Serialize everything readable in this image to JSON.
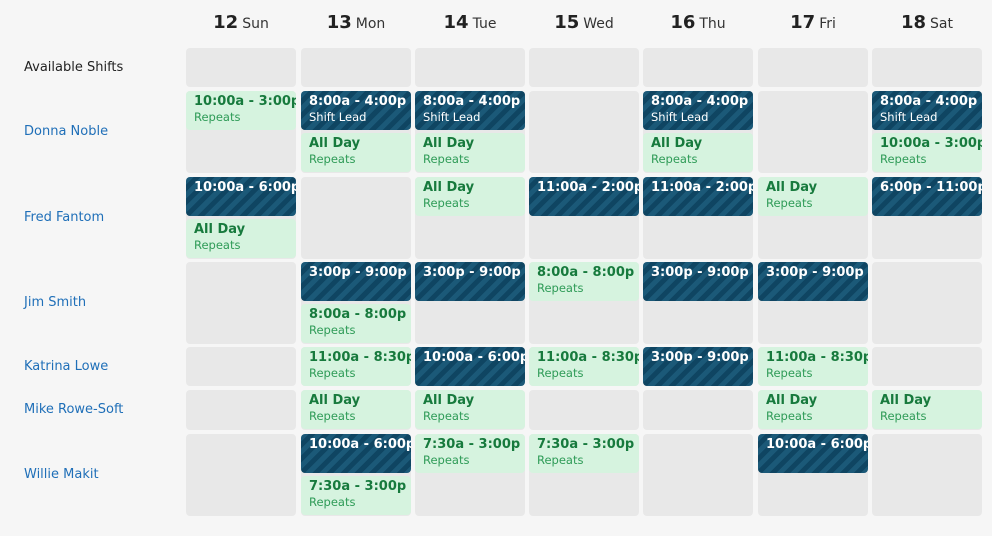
{
  "days": [
    {
      "num": "12",
      "name": "Sun"
    },
    {
      "num": "13",
      "name": "Mon"
    },
    {
      "num": "14",
      "name": "Tue"
    },
    {
      "num": "15",
      "name": "Wed"
    },
    {
      "num": "16",
      "name": "Thu"
    },
    {
      "num": "17",
      "name": "Fri"
    },
    {
      "num": "18",
      "name": "Sat"
    }
  ],
  "rows": [
    {
      "label": "Available Shifts",
      "kind": "available"
    },
    {
      "label": "Donna Noble",
      "kind": "person"
    },
    {
      "label": "Fred Fantom",
      "kind": "person"
    },
    {
      "label": "Jim Smith",
      "kind": "person"
    },
    {
      "label": "Katrina Lowe",
      "kind": "person"
    },
    {
      "label": "Mike Rowe-Soft",
      "kind": "person"
    },
    {
      "label": "Willie Makit",
      "kind": "person"
    }
  ],
  "shifts": [
    {
      "row": 1,
      "day": 0,
      "slot": 0,
      "style": "repeating",
      "time": "10:00a - 3:00p",
      "sub": "Repeats"
    },
    {
      "row": 1,
      "day": 1,
      "slot": 0,
      "style": "lead",
      "time": "8:00a - 4:00p",
      "sub": "Shift Lead"
    },
    {
      "row": 1,
      "day": 1,
      "slot": 1,
      "style": "repeating",
      "time": "All Day",
      "sub": "Repeats"
    },
    {
      "row": 1,
      "day": 2,
      "slot": 0,
      "style": "lead",
      "time": "8:00a - 4:00p",
      "sub": "Shift Lead"
    },
    {
      "row": 1,
      "day": 2,
      "slot": 1,
      "style": "repeating",
      "time": "All Day",
      "sub": "Repeats"
    },
    {
      "row": 1,
      "day": 4,
      "slot": 0,
      "style": "lead",
      "time": "8:00a - 4:00p",
      "sub": "Shift Lead"
    },
    {
      "row": 1,
      "day": 4,
      "slot": 1,
      "style": "repeating",
      "time": "All Day",
      "sub": "Repeats"
    },
    {
      "row": 1,
      "day": 6,
      "slot": 0,
      "style": "lead",
      "time": "8:00a - 4:00p",
      "sub": "Shift Lead"
    },
    {
      "row": 1,
      "day": 6,
      "slot": 1,
      "style": "repeating",
      "time": "10:00a - 3:00p",
      "sub": "Repeats"
    },
    {
      "row": 2,
      "day": 0,
      "slot": 0,
      "style": "lead",
      "time": "10:00a - 6:00p",
      "sub": ""
    },
    {
      "row": 2,
      "day": 0,
      "slot": 1,
      "style": "repeating",
      "time": "All Day",
      "sub": "Repeats"
    },
    {
      "row": 2,
      "day": 2,
      "slot": 0,
      "style": "repeating",
      "time": "All Day",
      "sub": "Repeats"
    },
    {
      "row": 2,
      "day": 3,
      "slot": 0,
      "style": "lead",
      "time": "11:00a - 2:00p",
      "sub": ""
    },
    {
      "row": 2,
      "day": 4,
      "slot": 0,
      "style": "lead",
      "time": "11:00a - 2:00p",
      "sub": ""
    },
    {
      "row": 2,
      "day": 5,
      "slot": 0,
      "style": "repeating",
      "time": "All Day",
      "sub": "Repeats"
    },
    {
      "row": 2,
      "day": 6,
      "slot": 0,
      "style": "lead",
      "time": "6:00p - 11:00p",
      "sub": ""
    },
    {
      "row": 3,
      "day": 1,
      "slot": 0,
      "style": "lead",
      "time": "3:00p - 9:00p",
      "sub": ""
    },
    {
      "row": 3,
      "day": 1,
      "slot": 1,
      "style": "repeating",
      "time": "8:00a - 8:00p",
      "sub": "Repeats"
    },
    {
      "row": 3,
      "day": 2,
      "slot": 0,
      "style": "lead",
      "time": "3:00p - 9:00p",
      "sub": ""
    },
    {
      "row": 3,
      "day": 3,
      "slot": 0,
      "style": "repeating",
      "time": "8:00a - 8:00p",
      "sub": "Repeats"
    },
    {
      "row": 3,
      "day": 4,
      "slot": 0,
      "style": "lead",
      "time": "3:00p - 9:00p",
      "sub": ""
    },
    {
      "row": 3,
      "day": 5,
      "slot": 0,
      "style": "lead",
      "time": "3:00p - 9:00p",
      "sub": ""
    },
    {
      "row": 4,
      "day": 1,
      "slot": 0,
      "style": "repeating",
      "time": "11:00a - 8:30p",
      "sub": "Repeats"
    },
    {
      "row": 4,
      "day": 2,
      "slot": 0,
      "style": "lead",
      "time": "10:00a - 6:00p",
      "sub": ""
    },
    {
      "row": 4,
      "day": 3,
      "slot": 0,
      "style": "repeating",
      "time": "11:00a - 8:30p",
      "sub": "Repeats"
    },
    {
      "row": 4,
      "day": 4,
      "slot": 0,
      "style": "lead",
      "time": "3:00p - 9:00p",
      "sub": ""
    },
    {
      "row": 4,
      "day": 5,
      "slot": 0,
      "style": "repeating",
      "time": "11:00a - 8:30p",
      "sub": "Repeats"
    },
    {
      "row": 5,
      "day": 1,
      "slot": 0,
      "style": "repeating",
      "time": "All Day",
      "sub": "Repeats"
    },
    {
      "row": 5,
      "day": 2,
      "slot": 0,
      "style": "repeating",
      "time": "All Day",
      "sub": "Repeats"
    },
    {
      "row": 5,
      "day": 5,
      "slot": 0,
      "style": "repeating",
      "time": "All Day",
      "sub": "Repeats"
    },
    {
      "row": 5,
      "day": 6,
      "slot": 0,
      "style": "repeating",
      "time": "All Day",
      "sub": "Repeats"
    },
    {
      "row": 6,
      "day": 1,
      "slot": 0,
      "style": "lead",
      "time": "10:00a - 6:00p",
      "sub": ""
    },
    {
      "row": 6,
      "day": 1,
      "slot": 1,
      "style": "repeating",
      "time": "7:30a - 3:00p",
      "sub": "Repeats"
    },
    {
      "row": 6,
      "day": 2,
      "slot": 0,
      "style": "repeating",
      "time": "7:30a - 3:00p",
      "sub": "Repeats"
    },
    {
      "row": 6,
      "day": 3,
      "slot": 0,
      "style": "repeating",
      "time": "7:30a - 3:00p",
      "sub": "Repeats"
    },
    {
      "row": 6,
      "day": 5,
      "slot": 0,
      "style": "lead",
      "time": "10:00a - 6:00p",
      "sub": ""
    }
  ],
  "colors": {
    "page_bg": "#f6f6f6",
    "cell_bg": "#e8e8e8",
    "repeating_bg": "#d6f3df",
    "repeating_text": "#177a3d",
    "lead_stripe_a": "#1b5978",
    "lead_stripe_b": "#0f4562",
    "person_link": "#1f6fb8"
  }
}
